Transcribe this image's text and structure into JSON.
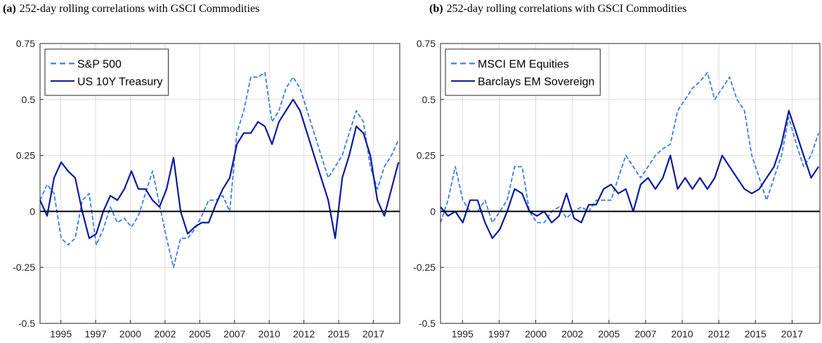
{
  "chart_data": [
    {
      "type": "line",
      "label": "(a)",
      "title": "252-day rolling correlations with GSCI Commodities",
      "xlim": [
        1993.5,
        2019.4
      ],
      "ylim": [
        -0.5,
        0.75
      ],
      "xticks": [
        {
          "value": 1995,
          "label": "1995"
        },
        {
          "value": 1997.5,
          "label": "1997"
        },
        {
          "value": 2000,
          "label": "2000"
        },
        {
          "value": 2002.5,
          "label": "2002"
        },
        {
          "value": 2005,
          "label": "2005"
        },
        {
          "value": 2007.5,
          "label": "2007"
        },
        {
          "value": 2010,
          "label": "2010"
        },
        {
          "value": 2012.5,
          "label": "2012"
        },
        {
          "value": 2015,
          "label": "2015"
        },
        {
          "value": 2017.5,
          "label": "2017"
        }
      ],
      "yticks": [
        0.75,
        0.5,
        0.25,
        0,
        -0.25,
        -0.5
      ],
      "grid": true,
      "hline": 0,
      "legend": "upper left",
      "x": [
        1993.5,
        1994.01,
        1994.51,
        1995.02,
        1995.52,
        1996.03,
        1996.54,
        1997.04,
        1997.55,
        1998.05,
        1998.56,
        1999.07,
        1999.57,
        2000.08,
        2000.58,
        2001.09,
        2001.6,
        2002.1,
        2002.61,
        2003.11,
        2003.62,
        2004.13,
        2004.63,
        2005.14,
        2005.64,
        2006.15,
        2006.66,
        2007.16,
        2007.67,
        2008.17,
        2008.68,
        2009.19,
        2009.69,
        2010.2,
        2010.7,
        2011.21,
        2011.72,
        2012.22,
        2012.73,
        2013.23,
        2013.74,
        2014.25,
        2014.75,
        2015.26,
        2015.76,
        2016.27,
        2016.78,
        2017.28,
        2017.79,
        2018.29,
        2018.8,
        2019.31
      ],
      "series": [
        {
          "name": "S&P 500",
          "color": "#3b7be8",
          "style": "dashed",
          "values": [
            0.05,
            0.12,
            0.08,
            -0.12,
            -0.15,
            -0.12,
            0.05,
            0.08,
            -0.15,
            -0.08,
            0.02,
            -0.05,
            -0.03,
            -0.07,
            -0.02,
            0.08,
            0.18,
            0.03,
            -0.12,
            -0.25,
            -0.12,
            -0.12,
            -0.08,
            -0.02,
            0.05,
            0.05,
            0.07,
            0.0,
            0.35,
            0.45,
            0.6,
            0.6,
            0.62,
            0.4,
            0.45,
            0.55,
            0.6,
            0.55,
            0.45,
            0.35,
            0.25,
            0.15,
            0.2,
            0.25,
            0.35,
            0.45,
            0.4,
            0.2,
            0.1,
            0.2,
            0.25,
            0.32
          ]
        },
        {
          "name": "US 10Y Treasury",
          "color": "#0b1a9e",
          "style": "solid",
          "values": [
            0.05,
            -0.02,
            0.15,
            0.22,
            0.18,
            0.15,
            0.0,
            -0.12,
            -0.1,
            0.0,
            0.07,
            0.05,
            0.1,
            0.18,
            0.1,
            0.1,
            0.05,
            0.02,
            0.1,
            0.24,
            0.0,
            -0.1,
            -0.07,
            -0.05,
            -0.05,
            0.03,
            0.1,
            0.15,
            0.3,
            0.35,
            0.35,
            0.4,
            0.38,
            0.3,
            0.4,
            0.45,
            0.5,
            0.45,
            0.35,
            0.25,
            0.15,
            0.05,
            -0.12,
            0.15,
            0.25,
            0.38,
            0.35,
            0.25,
            0.05,
            -0.02,
            0.1,
            0.22
          ]
        }
      ]
    },
    {
      "type": "line",
      "label": "(b)",
      "title": "252-day rolling correlations with GSCI Commodities",
      "xlim": [
        1993.5,
        2019.4
      ],
      "ylim": [
        -0.5,
        0.75
      ],
      "xticks": [
        {
          "value": 1995,
          "label": "1995"
        },
        {
          "value": 1997.5,
          "label": "1997"
        },
        {
          "value": 2000,
          "label": "2000"
        },
        {
          "value": 2002.5,
          "label": "2002"
        },
        {
          "value": 2005,
          "label": "2005"
        },
        {
          "value": 2007.5,
          "label": "2007"
        },
        {
          "value": 2010,
          "label": "2010"
        },
        {
          "value": 2012.5,
          "label": "2012"
        },
        {
          "value": 2015,
          "label": "2015"
        },
        {
          "value": 2017.5,
          "label": "2017"
        }
      ],
      "yticks": [
        0.75,
        0.5,
        0.25,
        0,
        -0.25,
        -0.5
      ],
      "grid": true,
      "hline": 0,
      "legend": "upper left",
      "x": [
        1993.5,
        1994.01,
        1994.51,
        1995.02,
        1995.52,
        1996.03,
        1996.54,
        1997.04,
        1997.55,
        1998.05,
        1998.56,
        1999.07,
        1999.57,
        2000.08,
        2000.58,
        2001.09,
        2001.6,
        2002.1,
        2002.61,
        2003.11,
        2003.62,
        2004.13,
        2004.63,
        2005.14,
        2005.64,
        2006.15,
        2006.66,
        2007.16,
        2007.67,
        2008.17,
        2008.68,
        2009.19,
        2009.69,
        2010.2,
        2010.7,
        2011.21,
        2011.72,
        2012.22,
        2012.73,
        2013.23,
        2013.74,
        2014.25,
        2014.75,
        2015.26,
        2015.76,
        2016.27,
        2016.78,
        2017.28,
        2017.79,
        2018.29,
        2018.8,
        2019.31
      ],
      "series": [
        {
          "name": "MSCI EM Equities",
          "color": "#3b7be8",
          "style": "dashed",
          "values": [
            -0.05,
            0.05,
            0.2,
            0.05,
            0.0,
            0.0,
            0.05,
            -0.05,
            0.0,
            0.05,
            0.2,
            0.2,
            0.0,
            -0.05,
            -0.05,
            0.0,
            0.02,
            -0.03,
            0.0,
            0.02,
            0.0,
            0.05,
            0.05,
            0.05,
            0.15,
            0.25,
            0.2,
            0.15,
            0.2,
            0.25,
            0.28,
            0.3,
            0.45,
            0.5,
            0.55,
            0.58,
            0.62,
            0.5,
            0.55,
            0.6,
            0.5,
            0.45,
            0.25,
            0.15,
            0.05,
            0.15,
            0.25,
            0.42,
            0.3,
            0.2,
            0.25,
            0.35
          ]
        },
        {
          "name": "Barclays EM Sovereign",
          "color": "#0b1a9e",
          "style": "solid",
          "values": [
            0.02,
            -0.02,
            0.0,
            -0.05,
            0.05,
            0.05,
            -0.05,
            -0.12,
            -0.08,
            0.0,
            0.1,
            0.08,
            0.0,
            -0.02,
            0.0,
            -0.05,
            -0.02,
            0.08,
            -0.03,
            -0.05,
            0.03,
            0.03,
            0.1,
            0.12,
            0.08,
            0.1,
            0.0,
            0.12,
            0.15,
            0.1,
            0.15,
            0.25,
            0.1,
            0.15,
            0.1,
            0.15,
            0.1,
            0.15,
            0.25,
            0.2,
            0.15,
            0.1,
            0.08,
            0.1,
            0.15,
            0.2,
            0.3,
            0.45,
            0.35,
            0.25,
            0.15,
            0.2
          ]
        }
      ]
    }
  ]
}
